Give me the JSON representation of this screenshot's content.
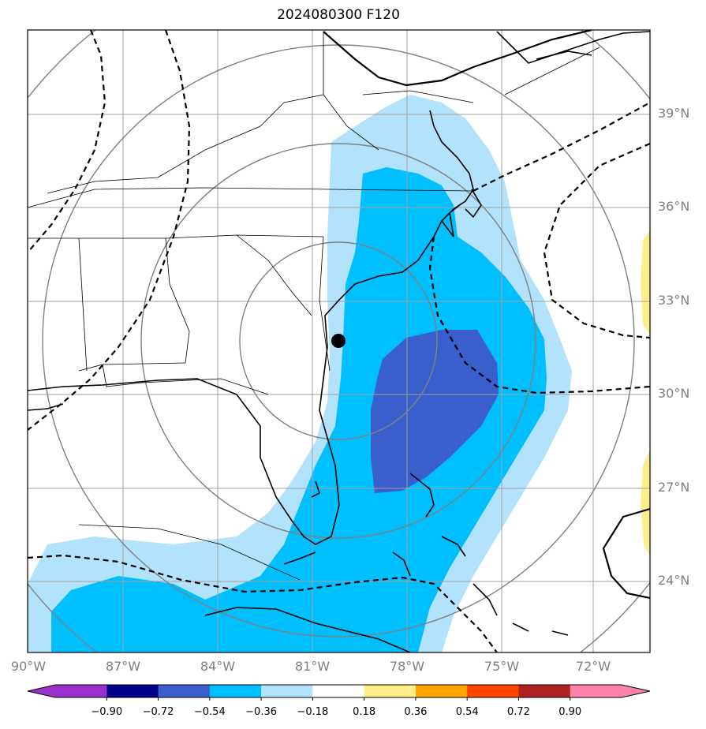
{
  "title": "2024080300 F120",
  "lat_labels": [
    "39°N",
    "36°N",
    "33°N",
    "30°N",
    "27°N",
    "24°N"
  ],
  "lon_labels": [
    "90°W",
    "87°W",
    "84°W",
    "81°W",
    "78°W",
    "75°W",
    "72°W"
  ],
  "colorbar": {
    "labels": [
      "−0.90",
      "−0.72",
      "−0.54",
      "−0.36",
      "−0.18",
      "0.18",
      "0.36",
      "0.54",
      "0.72",
      "0.90"
    ],
    "colors": [
      "#9b30d0",
      "#00008b",
      "#3a5fcd",
      "#00bfff",
      "#b2e2fc",
      "#ffffff",
      "#ffec8b",
      "#ffa500",
      "#ff4500",
      "#b22222",
      "#ff82ab",
      "#ff82ab"
    ]
  },
  "marker": {
    "name": "storm-center-marker",
    "color": "#000000"
  },
  "colors": {
    "shade_light": "#b2e2fc",
    "shade_mid": "#00bfff",
    "shade_dark": "#3a5fcd",
    "shade_positive": "#ffec8b",
    "grid": "#a0a0a0",
    "ring": "#808080"
  }
}
